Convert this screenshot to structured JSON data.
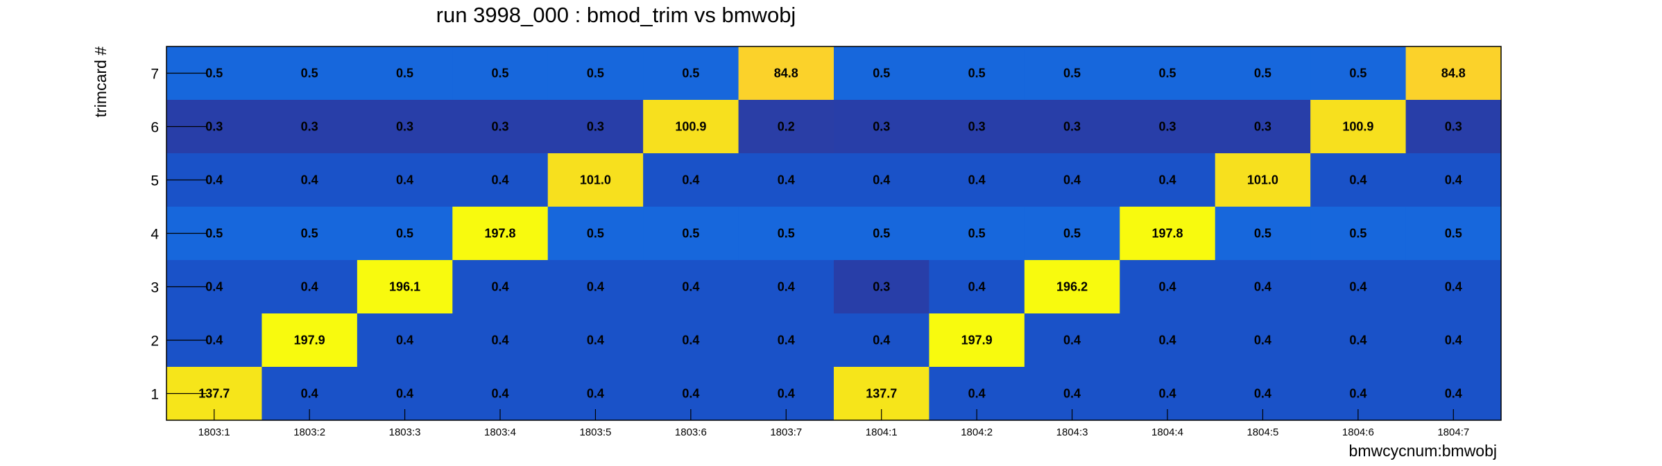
{
  "chart_data": {
    "type": "heatmap",
    "title": "run 3998_000 : bmod_trim vs bmwobj",
    "xlabel": "bmwcycnum:bmwobj",
    "ylabel": "trimcard #",
    "x_categories": [
      "1803:1",
      "1803:2",
      "1803:3",
      "1803:4",
      "1803:5",
      "1803:6",
      "1803:7",
      "1804:1",
      "1804:2",
      "1804:3",
      "1804:4",
      "1804:5",
      "1804:6",
      "1804:7"
    ],
    "y_categories": [
      "1",
      "2",
      "3",
      "4",
      "5",
      "6",
      "7"
    ],
    "rows": [
      {
        "y": "7",
        "values": [
          "0.5",
          "0.5",
          "0.5",
          "0.5",
          "0.5",
          "0.5",
          "84.8",
          "0.5",
          "0.5",
          "0.5",
          "0.5",
          "0.5",
          "0.5",
          "84.8"
        ]
      },
      {
        "y": "6",
        "values": [
          "0.3",
          "0.3",
          "0.3",
          "0.3",
          "0.3",
          "100.9",
          "0.2",
          "0.3",
          "0.3",
          "0.3",
          "0.3",
          "0.3",
          "100.9",
          "0.3"
        ]
      },
      {
        "y": "5",
        "values": [
          "0.4",
          "0.4",
          "0.4",
          "0.4",
          "101.0",
          "0.4",
          "0.4",
          "0.4",
          "0.4",
          "0.4",
          "0.4",
          "101.0",
          "0.4",
          "0.4"
        ]
      },
      {
        "y": "4",
        "values": [
          "0.5",
          "0.5",
          "0.5",
          "197.8",
          "0.5",
          "0.5",
          "0.5",
          "0.5",
          "0.5",
          "0.5",
          "197.8",
          "0.5",
          "0.5",
          "0.5"
        ]
      },
      {
        "y": "3",
        "values": [
          "0.4",
          "0.4",
          "196.1",
          "0.4",
          "0.4",
          "0.4",
          "0.4",
          "0.3",
          "0.4",
          "196.2",
          "0.4",
          "0.4",
          "0.4",
          "0.4"
        ]
      },
      {
        "y": "2",
        "values": [
          "0.4",
          "197.9",
          "0.4",
          "0.4",
          "0.4",
          "0.4",
          "0.4",
          "0.4",
          "197.9",
          "0.4",
          "0.4",
          "0.4",
          "0.4",
          "0.4"
        ]
      },
      {
        "y": "1",
        "values": [
          "137.7",
          "0.4",
          "0.4",
          "0.4",
          "0.4",
          "0.4",
          "0.4",
          "137.7",
          "0.4",
          "0.4",
          "0.4",
          "0.4",
          "0.4",
          "0.4"
        ]
      }
    ],
    "colors": {
      "low_0.2": "#2a3ea6",
      "low_0.3": "#283ea8",
      "low_0.4": "#1a52c8",
      "low_0.5": "#1767dc",
      "mid": "#fbd22a",
      "high_100": "#f7e01e",
      "high_137": "#f6e51a",
      "high_max": "#f8fa0e"
    }
  }
}
